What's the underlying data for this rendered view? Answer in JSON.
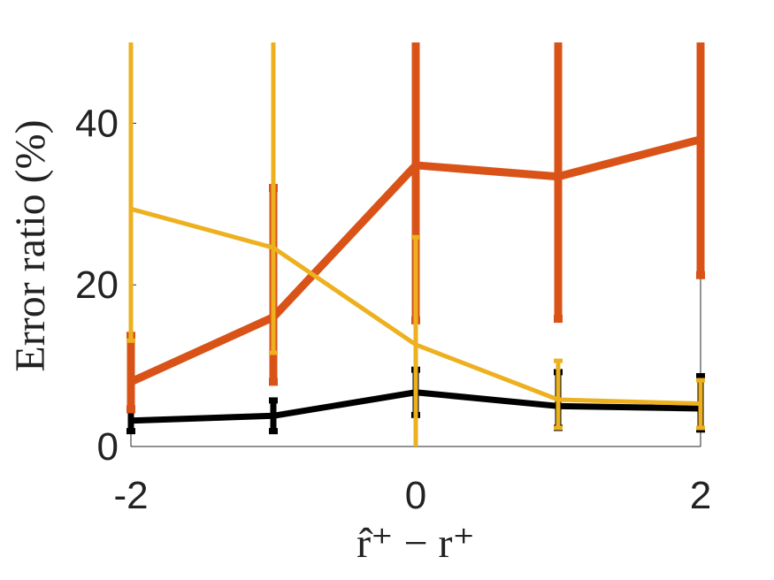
{
  "chart_data": {
    "type": "errorbar-line",
    "x_label": "r̂⁺ − r⁺",
    "y_label": "Error ratio (%)",
    "x": [
      -2,
      -1,
      0,
      1,
      2
    ],
    "xlim": [
      -2,
      2
    ],
    "xticks": [
      -2,
      0,
      2
    ],
    "ylim": [
      0,
      50
    ],
    "yticks": [
      0,
      20,
      40
    ],
    "series": [
      {
        "color": "#000000",
        "values": [
          3.2,
          3.8,
          6.7,
          5.0,
          4.7
        ],
        "errors_lower": [
          1.3,
          1.9,
          2.8,
          2.7,
          2.6
        ],
        "errors_upper": [
          1.3,
          1.9,
          2.8,
          4.2,
          4.0
        ]
      },
      {
        "color": "#d95319",
        "values": [
          8.0,
          16.0,
          34.8,
          33.4,
          38.0
        ],
        "errors_lower": [
          3.4,
          8.0,
          19.2,
          17.6,
          16.8
        ],
        "errors_upper": [
          5.7,
          16.0,
          19.2,
          17.6,
          16.8
        ]
      },
      {
        "color": "#edb120",
        "values": [
          29.4,
          24.6,
          12.6,
          5.8,
          5.3
        ],
        "errors_lower": [
          16.3,
          13.0,
          13.0,
          3.5,
          3.0
        ],
        "errors_upper": [
          25.0,
          26.0,
          13.3,
          4.8,
          2.9
        ]
      }
    ]
  }
}
